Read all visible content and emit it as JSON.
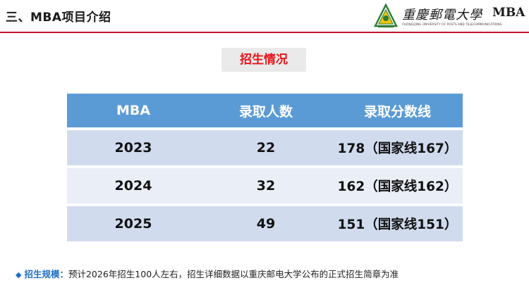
{
  "header": {
    "title": "三、MBA项目介绍",
    "logo": {
      "cn_text": "重慶郵電大學",
      "mba_text": "MBA",
      "en_text": "CHONGQING UNIVERSITY OF POSTS AND TELECOMMUNICATIONS"
    },
    "accent_color": "#c8102e"
  },
  "section_title": "招生情况",
  "table": {
    "headers": [
      "MBA",
      "录取人数",
      "录取分数线"
    ],
    "rows": [
      {
        "year": "2023",
        "admitted": "22",
        "score": "178（国家线167）"
      },
      {
        "year": "2024",
        "admitted": "32",
        "score": "162（国家线162）"
      },
      {
        "year": "2025",
        "admitted": "49",
        "score": "151（国家线151）"
      }
    ],
    "header_color": "#5b9bd5"
  },
  "note": {
    "bullet": "◆",
    "label": "招生规模：",
    "text": "预计2026年招生100人左右，招生详细数据以重庆邮电大学公布的正式招生简章为准"
  }
}
